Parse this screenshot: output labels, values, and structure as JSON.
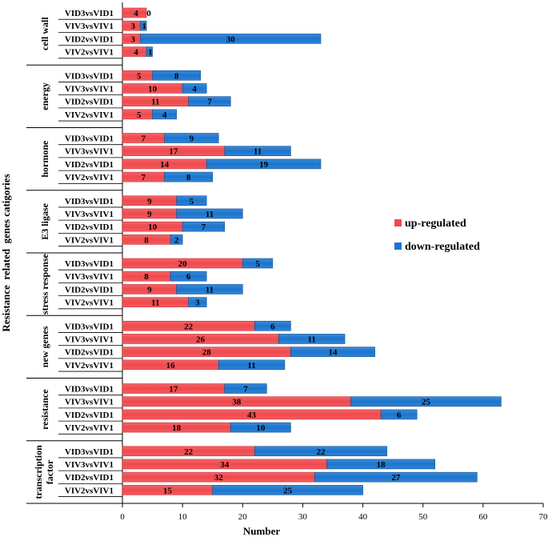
{
  "chart_data": {
    "type": "bar",
    "orientation": "horizontal",
    "stacked": true,
    "xlabel": "Number",
    "ylabel": "Resistance  related  genes catigories",
    "xlim": [
      0,
      70
    ],
    "xticks": [
      0,
      10,
      20,
      30,
      40,
      50,
      60,
      70
    ],
    "colors": {
      "up": "#f0494d",
      "down": "#1a75cf"
    },
    "legend": [
      {
        "key": "up",
        "label": "up-regulated"
      },
      {
        "key": "down",
        "label": "down-regulated"
      }
    ],
    "groups": [
      {
        "name": "cell wall",
        "rows": [
          {
            "label": "VID3vsVID1",
            "up": 4,
            "down": 0
          },
          {
            "label": "VIV3vsVIV1",
            "up": 3,
            "down": 1
          },
          {
            "label": "VID2vsVID1",
            "up": 3,
            "down": 30
          },
          {
            "label": "VIV2vsVIV1",
            "up": 4,
            "down": 1
          }
        ]
      },
      {
        "name": "energy",
        "rows": [
          {
            "label": "VID3vsVID1",
            "up": 5,
            "down": 8
          },
          {
            "label": "VIV3vsVIV1",
            "up": 10,
            "down": 4
          },
          {
            "label": "VID2vsVID1",
            "up": 11,
            "down": 7
          },
          {
            "label": "VIV2vsVIV1",
            "up": 5,
            "down": 4
          }
        ]
      },
      {
        "name": "hormone",
        "rows": [
          {
            "label": "VID3vsVID1",
            "up": 7,
            "down": 9
          },
          {
            "label": "VIV3vsVIV1",
            "up": 17,
            "down": 11
          },
          {
            "label": "VID2vsVID1",
            "up": 14,
            "down": 19
          },
          {
            "label": "VIV2vsVIV1",
            "up": 7,
            "down": 8
          }
        ]
      },
      {
        "name": "E3 ligase",
        "rows": [
          {
            "label": "VID3vsVID1",
            "up": 9,
            "down": 5
          },
          {
            "label": "VIV3vsVIV1",
            "up": 9,
            "down": 11
          },
          {
            "label": "VID2vsVID1",
            "up": 10,
            "down": 7
          },
          {
            "label": "VIV2vsVIV1",
            "up": 8,
            "down": 2
          }
        ]
      },
      {
        "name": "stress response",
        "rows": [
          {
            "label": "VID3vsVID1",
            "up": 20,
            "down": 5
          },
          {
            "label": "VIV3vsVIV1",
            "up": 8,
            "down": 6
          },
          {
            "label": "VID2vsVID1",
            "up": 9,
            "down": 11
          },
          {
            "label": "VIV2vsVIV1",
            "up": 11,
            "down": 3
          }
        ]
      },
      {
        "name": "new genes",
        "rows": [
          {
            "label": "VID3vsVID1",
            "up": 22,
            "down": 6
          },
          {
            "label": "VIV3vsVIV1",
            "up": 26,
            "down": 11
          },
          {
            "label": "VID2vsVID1",
            "up": 28,
            "down": 14
          },
          {
            "label": "VIV2vsVIV1",
            "up": 16,
            "down": 11
          }
        ]
      },
      {
        "name": "resistance",
        "rows": [
          {
            "label": "VID3vsVID1",
            "up": 17,
            "down": 7
          },
          {
            "label": "VIV3vsVIV1",
            "up": 38,
            "down": 25
          },
          {
            "label": "VID2vsVID1",
            "up": 43,
            "down": 6
          },
          {
            "label": "VIV2vsVIV1",
            "up": 18,
            "down": 10
          }
        ]
      },
      {
        "name": "transcription factor",
        "name_lines": [
          "transcription",
          "factor"
        ],
        "rows": [
          {
            "label": "VID3vsVID1",
            "up": 22,
            "down": 22
          },
          {
            "label": "VIV3vsVIV1",
            "up": 34,
            "down": 18
          },
          {
            "label": "VID2vsVID1",
            "up": 32,
            "down": 27
          },
          {
            "label": "VIV2vsVIV1",
            "up": 15,
            "down": 25
          }
        ]
      }
    ]
  }
}
